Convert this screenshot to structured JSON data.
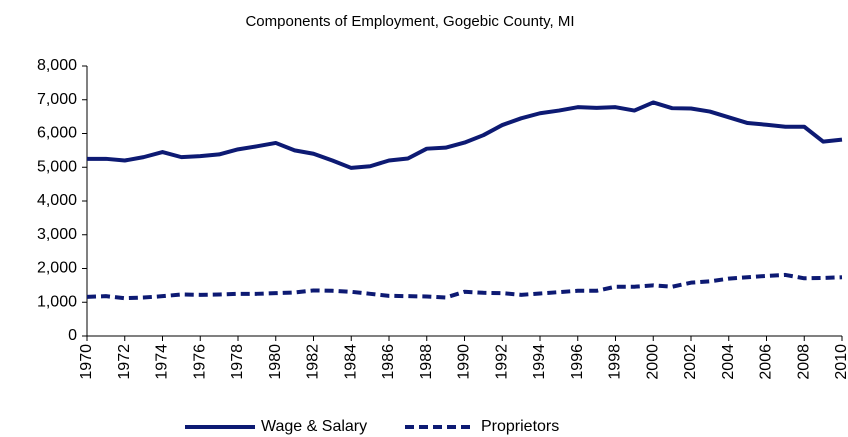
{
  "chart_data": {
    "type": "line",
    "title": "Components of Employment, Gogebic County, MI",
    "x": [
      1970,
      1971,
      1972,
      1973,
      1974,
      1975,
      1976,
      1977,
      1978,
      1979,
      1980,
      1981,
      1982,
      1983,
      1984,
      1985,
      1986,
      1987,
      1988,
      1989,
      1990,
      1991,
      1992,
      1993,
      1994,
      1995,
      1996,
      1997,
      1998,
      1999,
      2000,
      2001,
      2002,
      2003,
      2004,
      2005,
      2006,
      2007,
      2008,
      2009,
      2010
    ],
    "xlim": [
      1970,
      2010
    ],
    "xticks": [
      1970,
      1972,
      1974,
      1976,
      1978,
      1980,
      1982,
      1984,
      1986,
      1988,
      1990,
      1992,
      1994,
      1996,
      1998,
      2000,
      2002,
      2004,
      2006,
      2008,
      2010
    ],
    "ylim": [
      0,
      8000
    ],
    "yticks": [
      0,
      {
        "value": 1000,
        "label": "1,000"
      },
      {
        "value": 2000,
        "label": "2,000"
      },
      {
        "value": 3000,
        "label": "3,000"
      },
      {
        "value": 4000,
        "label": "4,000"
      },
      {
        "value": 5000,
        "label": "5,000"
      },
      {
        "value": 6000,
        "label": "6,000"
      },
      {
        "value": 7000,
        "label": "7,000"
      },
      {
        "value": 8000,
        "label": "8,000"
      }
    ],
    "grid": false,
    "legend": "bottom",
    "series": [
      {
        "name": "Wage & Salary",
        "color": "#0d1a73",
        "style": "solid",
        "values": [
          5250,
          5250,
          5200,
          5300,
          5450,
          5300,
          5330,
          5380,
          5530,
          5620,
          5720,
          5500,
          5400,
          5200,
          4980,
          5030,
          5200,
          5260,
          5550,
          5580,
          5730,
          5950,
          6250,
          6450,
          6600,
          6680,
          6780,
          6760,
          6780,
          6680,
          6920,
          6750,
          6740,
          6650,
          6480,
          6310,
          6260,
          6200,
          6200,
          5760,
          5820
        ]
      },
      {
        "name": "Proprietors",
        "color": "#0d1a73",
        "style": "dashed",
        "values": [
          1160,
          1180,
          1120,
          1140,
          1180,
          1230,
          1220,
          1230,
          1250,
          1250,
          1270,
          1290,
          1350,
          1340,
          1310,
          1250,
          1190,
          1180,
          1170,
          1140,
          1310,
          1280,
          1270,
          1220,
          1260,
          1300,
          1340,
          1340,
          1460,
          1460,
          1500,
          1460,
          1580,
          1620,
          1700,
          1740,
          1780,
          1810,
          1710,
          1720,
          1740
        ]
      }
    ]
  }
}
